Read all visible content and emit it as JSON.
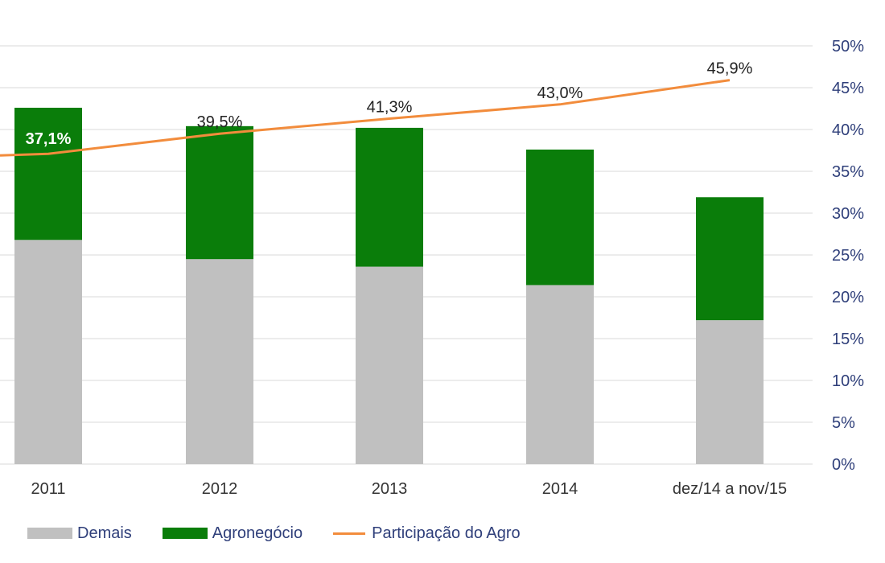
{
  "chart_data": {
    "type": "bar",
    "stacked": true,
    "categories": [
      "2011",
      "2012",
      "2013",
      "2014",
      "dez/14 a nov/15"
    ],
    "series": [
      {
        "name": "Demais",
        "type": "bar",
        "values": [
          26.8,
          24.5,
          23.6,
          21.4,
          17.2
        ],
        "color": "#c0c0c0"
      },
      {
        "name": "Agronegócio",
        "type": "bar",
        "values": [
          15.8,
          15.9,
          16.6,
          16.2,
          14.7
        ],
        "color": "#0a7d0a"
      },
      {
        "name": "Participação do Agro",
        "type": "line",
        "values": [
          37.1,
          39.5,
          41.3,
          43.0,
          45.9
        ],
        "labels": [
          "37,1%",
          "39,5%",
          "41,3%",
          "43,0%",
          "45,9%"
        ],
        "color": "#f28c3c"
      }
    ],
    "y_axis": {
      "position": "right",
      "ylim": [
        0,
        50
      ],
      "ticks": [
        "50%",
        "45%",
        "40%",
        "35%",
        "30%",
        "25%",
        "20%",
        "15%",
        "10%",
        "5%",
        "0%"
      ]
    },
    "grid": true,
    "legend": {
      "placement": "bottom-left",
      "items": [
        {
          "label": "Demais",
          "kind": "bar",
          "color": "#c0c0c0"
        },
        {
          "label": "Agronegócio",
          "kind": "bar",
          "color": "#0a7d0a"
        },
        {
          "label": "Participação do Agro",
          "kind": "line",
          "color": "#f28c3c"
        }
      ]
    }
  }
}
